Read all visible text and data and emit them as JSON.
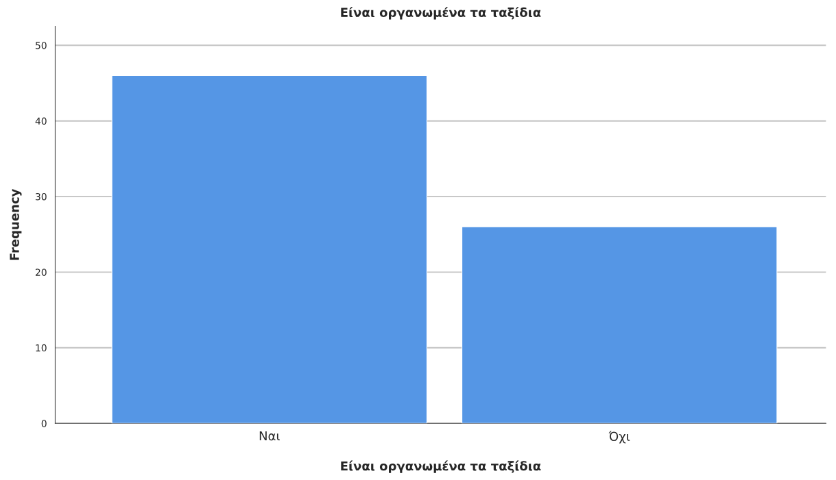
{
  "chart_data": {
    "type": "bar",
    "title": "Είναι οργανωμένα τα ταξίδια",
    "xlabel": "Είναι οργανωμένα τα ταξίδια",
    "ylabel": "Frequency",
    "categories": [
      "Ναι",
      "Όχι"
    ],
    "values": [
      46,
      26
    ],
    "color": "#5596e5",
    "ylim": [
      0,
      52.5
    ],
    "yticks": [
      0,
      10,
      20,
      30,
      40,
      50
    ],
    "grid": "y"
  }
}
